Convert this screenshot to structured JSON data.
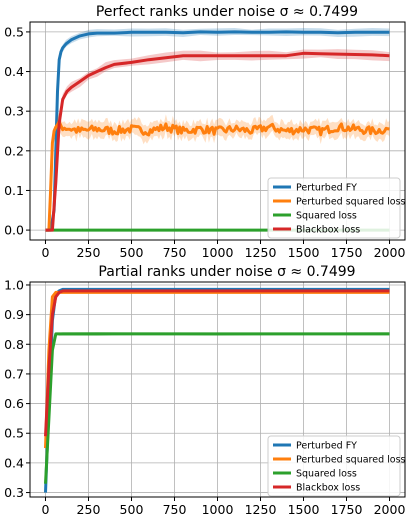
{
  "chart_data": [
    {
      "type": "line",
      "title": "Perfect ranks under noise σ ≈ 0.7499",
      "xlabel": "",
      "ylabel": "",
      "xlim": [
        -90,
        2090
      ],
      "ylim": [
        -0.025,
        0.525
      ],
      "xticks": [
        0,
        250,
        500,
        750,
        1000,
        1250,
        1500,
        1750,
        2000
      ],
      "yticks": [
        0.0,
        0.1,
        0.2,
        0.3,
        0.4,
        0.5
      ],
      "ytick_labels": [
        "0.0",
        "0.1",
        "0.2",
        "0.3",
        "0.4",
        "0.5"
      ],
      "grid": true,
      "legend_position": "bottom-right",
      "series": [
        {
          "name": "Perturbed FY",
          "color": "#1f77b4",
          "band": 0.008,
          "x": [
            0,
            30,
            50,
            60,
            70,
            80,
            90,
            100,
            120,
            150,
            200,
            250,
            300,
            400,
            500,
            600,
            700,
            800,
            900,
            1000,
            1100,
            1200,
            1300,
            1400,
            1500,
            1600,
            1700,
            1800,
            1900,
            2000
          ],
          "y": [
            0.0,
            0.0,
            0.05,
            0.2,
            0.35,
            0.43,
            0.45,
            0.46,
            0.47,
            0.48,
            0.49,
            0.495,
            0.497,
            0.497,
            0.499,
            0.499,
            0.499,
            0.498,
            0.5,
            0.499,
            0.5,
            0.499,
            0.499,
            0.5,
            0.499,
            0.499,
            0.498,
            0.499,
            0.499,
            0.499
          ]
        },
        {
          "name": "Perturbed squared loss",
          "color": "#ff7f0e",
          "band": 0.018,
          "jitter": 0.01,
          "x": [
            0,
            20,
            30,
            40,
            50,
            60,
            80,
            100,
            150,
            200,
            300,
            400,
            500,
            600,
            700,
            800,
            900,
            1000,
            1100,
            1200,
            1300,
            1400,
            1500,
            1600,
            1700,
            1800,
            1900,
            2000
          ],
          "y": [
            0.0,
            0.0,
            0.1,
            0.22,
            0.25,
            0.26,
            0.265,
            0.26,
            0.255,
            0.25,
            0.255,
            0.25,
            0.255,
            0.25,
            0.26,
            0.25,
            0.255,
            0.25,
            0.255,
            0.25,
            0.26,
            0.25,
            0.255,
            0.25,
            0.26,
            0.255,
            0.25,
            0.255
          ]
        },
        {
          "name": "Squared loss",
          "color": "#2ca02c",
          "band": 0,
          "x": [
            0,
            2000
          ],
          "y": [
            0.0,
            0.0
          ]
        },
        {
          "name": "Blackbox loss",
          "color": "#d62728",
          "band": 0.01,
          "x": [
            0,
            40,
            60,
            80,
            100,
            125,
            150,
            200,
            250,
            300,
            350,
            400,
            500,
            600,
            700,
            800,
            900,
            1000,
            1100,
            1200,
            1300,
            1400,
            1500,
            1600,
            1700,
            1800,
            1900,
            2000
          ],
          "y": [
            0.0,
            0.0,
            0.12,
            0.27,
            0.33,
            0.35,
            0.36,
            0.375,
            0.39,
            0.4,
            0.41,
            0.418,
            0.423,
            0.43,
            0.435,
            0.44,
            0.44,
            0.44,
            0.44,
            0.44,
            0.44,
            0.44,
            0.446,
            0.445,
            0.444,
            0.443,
            0.442,
            0.44
          ]
        }
      ]
    },
    {
      "type": "line",
      "title": "Partial ranks under noise σ ≈ 0.7499",
      "xlabel": "",
      "ylabel": "",
      "xlim": [
        -90,
        2090
      ],
      "ylim": [
        0.285,
        1.01
      ],
      "xticks": [
        0,
        250,
        500,
        750,
        1000,
        1250,
        1500,
        1750,
        2000
      ],
      "yticks": [
        0.3,
        0.4,
        0.5,
        0.6,
        0.7,
        0.8,
        0.9,
        1.0
      ],
      "ytick_labels": [
        "0.3",
        "0.4",
        "0.5",
        "0.6",
        "0.7",
        "0.8",
        "0.9",
        "1.0"
      ],
      "grid": true,
      "legend_position": "bottom-right",
      "series": [
        {
          "name": "Perturbed FY",
          "color": "#1f77b4",
          "band": 0,
          "x": [
            0,
            20,
            40,
            60,
            80,
            100,
            150,
            300,
            500,
            1000,
            1500,
            2000
          ],
          "y": [
            0.3,
            0.6,
            0.88,
            0.97,
            0.98,
            0.985,
            0.985,
            0.985,
            0.985,
            0.985,
            0.985,
            0.985
          ]
        },
        {
          "name": "Perturbed squared loss",
          "color": "#ff7f0e",
          "band": 0,
          "x": [
            0,
            20,
            40,
            60,
            80,
            100,
            150,
            300,
            500,
            1000,
            1500,
            2000
          ],
          "y": [
            0.45,
            0.78,
            0.96,
            0.975,
            0.975,
            0.975,
            0.975,
            0.975,
            0.975,
            0.975,
            0.975,
            0.975
          ]
        },
        {
          "name": "Squared loss",
          "color": "#2ca02c",
          "band": 0.005,
          "x": [
            0,
            20,
            40,
            60,
            80,
            100,
            300,
            500,
            1000,
            1500,
            2000
          ],
          "y": [
            0.33,
            0.55,
            0.78,
            0.835,
            0.835,
            0.835,
            0.835,
            0.835,
            0.835,
            0.835,
            0.835
          ]
        },
        {
          "name": "Blackbox loss",
          "color": "#d62728",
          "band": 0,
          "x": [
            0,
            20,
            40,
            60,
            80,
            100,
            150,
            300,
            500,
            1000,
            1500,
            2000
          ],
          "y": [
            0.49,
            0.72,
            0.9,
            0.96,
            0.975,
            0.98,
            0.98,
            0.98,
            0.98,
            0.98,
            0.98,
            0.98
          ]
        }
      ]
    }
  ]
}
